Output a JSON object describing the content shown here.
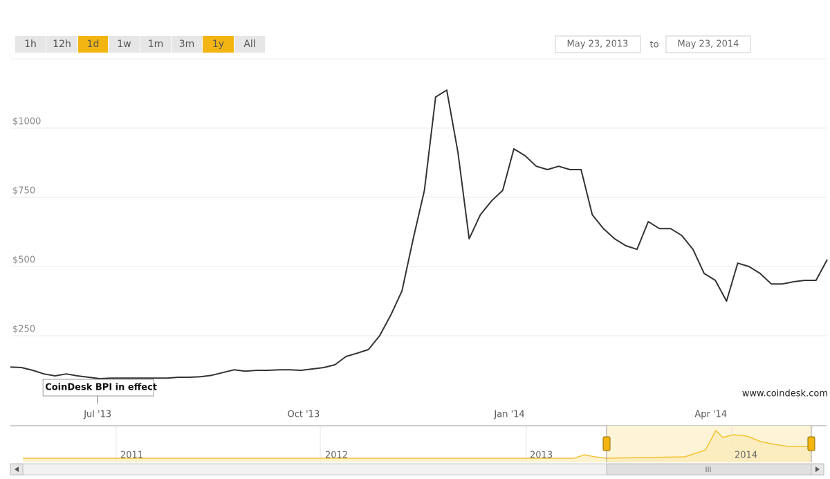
{
  "range_buttons": [
    {
      "label": "1h",
      "active": false
    },
    {
      "label": "12h",
      "active": false
    },
    {
      "label": "1d",
      "active": true
    },
    {
      "label": "1w",
      "active": false
    },
    {
      "label": "1m",
      "active": false
    },
    {
      "label": "3m",
      "active": false
    },
    {
      "label": "1y",
      "active": true
    },
    {
      "label": "All",
      "active": false
    }
  ],
  "date_range": {
    "from": "May 23, 2013",
    "separator": "to",
    "to": "May 23, 2014"
  },
  "chart_data": {
    "type": "line",
    "color": "#333333",
    "xlim": [
      "2013-05-23",
      "2014-05-23"
    ],
    "xticks": [
      {
        "value": "2013-07-01",
        "label": "Jul '13"
      },
      {
        "value": "2013-10-01",
        "label": "Oct '13"
      },
      {
        "value": "2014-01-01",
        "label": "Jan '14"
      },
      {
        "value": "2014-04-01",
        "label": "Apr '14"
      }
    ],
    "ylim": [
      0,
      1250
    ],
    "yticks": [
      {
        "value": 250,
        "label": "$250"
      },
      {
        "value": 500,
        "label": "$500"
      },
      {
        "value": 750,
        "label": "$750"
      },
      {
        "value": 1000,
        "label": "$1000"
      }
    ],
    "grid": true,
    "values": [
      137,
      135,
      125,
      112,
      105,
      112,
      105,
      100,
      95,
      97,
      97,
      97,
      97,
      97,
      97,
      100,
      100,
      102,
      107,
      117,
      127,
      122,
      125,
      125,
      127,
      127,
      125,
      130,
      135,
      145,
      175,
      187,
      200,
      250,
      325,
      412,
      600,
      775,
      1112,
      1137,
      912,
      600,
      687,
      737,
      775,
      925,
      900,
      862,
      850,
      862,
      850,
      850,
      687,
      637,
      600,
      575,
      562,
      662,
      637,
      637,
      612,
      562,
      475,
      450,
      375,
      512,
      500,
      475,
      437,
      437,
      445,
      450,
      450,
      525
    ],
    "annotations": [
      {
        "text": "CoinDesk BPI in effect",
        "x": "2013-07-01"
      }
    ],
    "credit": "www.coindesk.com"
  },
  "navigator": {
    "labels": [
      "2011",
      "2012",
      "2013",
      "2014"
    ]
  }
}
